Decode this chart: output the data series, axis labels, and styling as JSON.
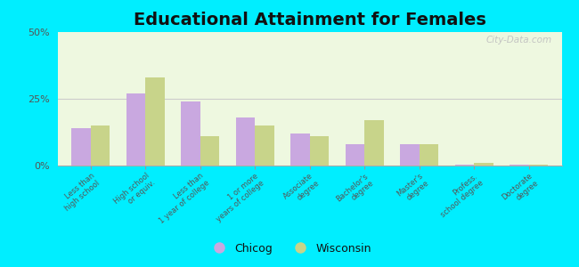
{
  "title": "Educational Attainment for Females",
  "categories": [
    "Less than\nhigh school",
    "High school\nor equiv.",
    "Less than\n1 year of college",
    "1 or more\nyears of college",
    "Associate\ndegree",
    "Bachelor's\ndegree",
    "Master's\ndegree",
    "Profess.\nschool degree",
    "Doctorate\ndegree"
  ],
  "chicog": [
    14.0,
    27.0,
    24.0,
    18.0,
    12.0,
    8.0,
    8.0,
    0.2,
    0.2
  ],
  "wisconsin": [
    15.0,
    33.0,
    11.0,
    15.0,
    11.0,
    17.0,
    8.0,
    1.0,
    0.5
  ],
  "chicog_color": "#c9a8e0",
  "wisconsin_color": "#c8d48a",
  "background_color": "#eef8e0",
  "outer_background": "#00eeff",
  "ylim": [
    0,
    50
  ],
  "yticks": [
    0,
    25,
    50
  ],
  "ytick_labels": [
    "0%",
    "25%",
    "50%"
  ],
  "bar_width": 0.35,
  "title_fontsize": 14,
  "legend_labels": [
    "Chicog",
    "Wisconsin"
  ],
  "watermark": "City-Data.com"
}
